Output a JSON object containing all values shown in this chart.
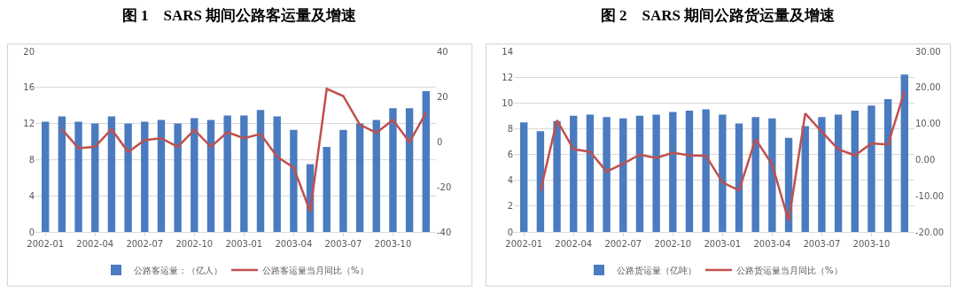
{
  "chart_data": [
    {
      "type": "bar",
      "title": "图 1　SARS 期间公路客运量及增速",
      "categories": [
        "2002-01",
        null,
        null,
        "2002-04",
        null,
        null,
        "2002-07",
        null,
        null,
        "2002-10",
        null,
        null,
        "2003-01",
        null,
        null,
        "2003-04",
        null,
        null,
        "2003-07",
        null,
        null,
        "2003-10",
        null,
        null
      ],
      "series": [
        {
          "name": "公路客运量：（亿人）",
          "color": "#4a7bc0",
          "values": [
            12.2,
            12.8,
            12.2,
            12.0,
            12.8,
            12.0,
            12.2,
            12.4,
            12.0,
            12.6,
            12.4,
            12.9,
            12.9,
            13.5,
            12.8,
            11.3,
            7.5,
            9.4,
            11.3,
            12.0,
            12.4,
            13.7,
            13.7,
            15.6
          ]
        },
        {
          "name": "公路客运量当月同比（%）",
          "type": "line",
          "axis": "y2",
          "color": "#c0504d",
          "values": [
            null,
            5.5,
            -2.9,
            -2.3,
            5.5,
            -4.6,
            0.7,
            1.5,
            -2.3,
            5.2,
            -2.3,
            4.2,
            1.5,
            3.4,
            -6.7,
            -11.5,
            -31,
            23.4,
            20.2,
            7.5,
            3.9,
            9.6,
            -0.2,
            12.8
          ]
        }
      ],
      "ylim": [
        0,
        20
      ],
      "yticks": [
        0,
        4,
        8,
        12,
        16,
        20
      ],
      "y2lim": [
        -40,
        40
      ],
      "y2ticks": [
        -40,
        -20,
        0,
        20,
        40
      ],
      "grid": "y",
      "legend": "bottom",
      "marker": "none",
      "line_style": "solid"
    },
    {
      "type": "bar",
      "title": "图 2　SARS 期间公路货运量及增速",
      "categories": [
        "2002-01",
        null,
        null,
        "2002-04",
        null,
        null,
        "2002-07",
        null,
        null,
        "2002-10",
        null,
        null,
        "2003-01",
        null,
        null,
        "2003-04",
        null,
        null,
        "2003-07",
        null,
        null,
        "2003-10",
        null,
        null
      ],
      "series": [
        {
          "name": "公路货运量（亿吨）",
          "color": "#4a7bc0",
          "values": [
            8.5,
            7.8,
            8.6,
            9.0,
            9.1,
            8.9,
            8.8,
            9.0,
            9.1,
            9.3,
            9.4,
            9.5,
            9.1,
            8.4,
            8.9,
            8.8,
            7.3,
            8.2,
            8.9,
            9.1,
            9.4,
            9.8,
            10.3,
            12.2
          ]
        },
        {
          "name": "公路货运量当月同比（%）",
          "type": "line",
          "axis": "y2",
          "color": "#c0504d",
          "values": [
            null,
            -8.7,
            10.9,
            2.9,
            2.2,
            -3.3,
            -1.1,
            1.4,
            0.5,
            1.9,
            1.2,
            1.1,
            -6.3,
            -8.5,
            5.7,
            -1.3,
            -17,
            12.8,
            7.7,
            2.9,
            1.2,
            4.5,
            4.2,
            19
          ]
        }
      ],
      "ylim": [
        0,
        14
      ],
      "yticks": [
        0,
        2,
        4,
        6,
        8,
        10,
        12,
        14
      ],
      "y2lim": [
        -20,
        30
      ],
      "y2ticks": [
        {
          "value": -20,
          "label": "-20.00"
        },
        {
          "value": -10,
          "label": "-10.00"
        },
        {
          "value": 0,
          "label": "0.00"
        },
        {
          "value": 10,
          "label": "10.00"
        },
        {
          "value": 20,
          "label": "20.00"
        },
        {
          "value": 30,
          "label": "30.00"
        }
      ],
      "grid": "y",
      "legend": "bottom",
      "marker": "none",
      "line_style": "solid"
    }
  ]
}
